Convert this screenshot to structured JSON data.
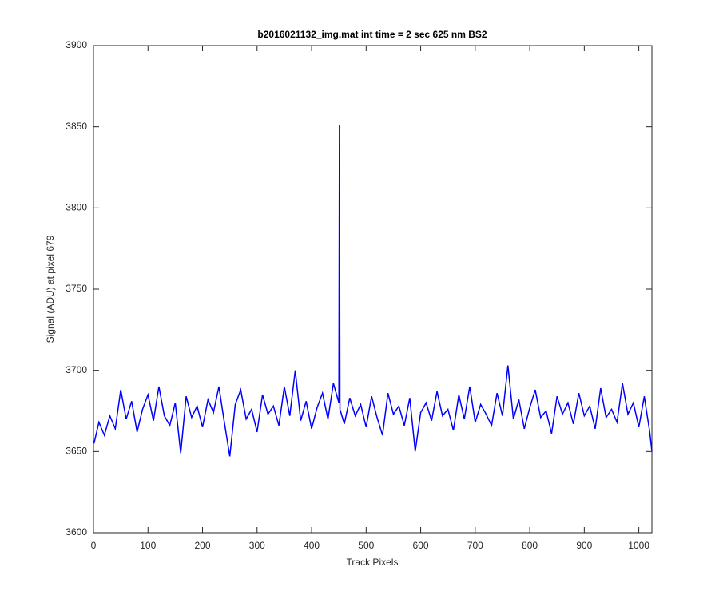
{
  "chart_data": {
    "type": "line",
    "title": "b2016021132_img.mat int time = 2 sec  625 nm BS2",
    "xlabel": "Track Pixels",
    "ylabel": "Signal (ADU) at pixel 679",
    "xlim": [
      0,
      1024
    ],
    "ylim": [
      3600,
      3900
    ],
    "xticks": [
      0,
      100,
      200,
      300,
      400,
      500,
      600,
      700,
      800,
      900,
      1000
    ],
    "yticks": [
      3600,
      3650,
      3700,
      3750,
      3800,
      3850,
      3900
    ],
    "series": [
      {
        "color": "#0000ff",
        "x": [
          1,
          10,
          20,
          30,
          40,
          50,
          60,
          70,
          80,
          90,
          100,
          110,
          120,
          130,
          140,
          150,
          160,
          170,
          180,
          190,
          200,
          210,
          220,
          230,
          240,
          250,
          260,
          270,
          280,
          290,
          300,
          310,
          320,
          330,
          340,
          350,
          360,
          370,
          380,
          390,
          400,
          410,
          420,
          430,
          440,
          450,
          451,
          452,
          460,
          470,
          480,
          490,
          500,
          510,
          520,
          530,
          540,
          550,
          560,
          570,
          580,
          590,
          600,
          610,
          620,
          630,
          640,
          650,
          660,
          670,
          680,
          690,
          700,
          710,
          720,
          730,
          740,
          750,
          760,
          770,
          780,
          790,
          800,
          810,
          820,
          830,
          840,
          850,
          860,
          870,
          880,
          890,
          900,
          910,
          920,
          930,
          940,
          950,
          960,
          970,
          980,
          990,
          1000,
          1010,
          1020,
          1024
        ],
        "values": [
          3655,
          3668,
          3660,
          3672,
          3664,
          3688,
          3670,
          3681,
          3662,
          3676,
          3685,
          3669,
          3690,
          3672,
          3666,
          3680,
          3649,
          3684,
          3671,
          3678,
          3665,
          3682,
          3674,
          3690,
          3668,
          3647,
          3679,
          3688,
          3670,
          3676,
          3662,
          3685,
          3673,
          3678,
          3666,
          3690,
          3672,
          3700,
          3669,
          3681,
          3664,
          3677,
          3686,
          3670,
          3692,
          3680,
          3851,
          3676,
          3667,
          3683,
          3672,
          3679,
          3665,
          3684,
          3671,
          3660,
          3686,
          3673,
          3678,
          3666,
          3683,
          3650,
          3674,
          3680,
          3669,
          3687,
          3672,
          3676,
          3663,
          3685,
          3670,
          3690,
          3668,
          3679,
          3673,
          3666,
          3686,
          3672,
          3703,
          3670,
          3682,
          3664,
          3677,
          3688,
          3671,
          3675,
          3661,
          3684,
          3673,
          3680,
          3667,
          3686,
          3672,
          3678,
          3664,
          3689,
          3671,
          3676,
          3668,
          3692,
          3673,
          3680,
          3665,
          3684,
          3662,
          3650
        ]
      }
    ]
  }
}
